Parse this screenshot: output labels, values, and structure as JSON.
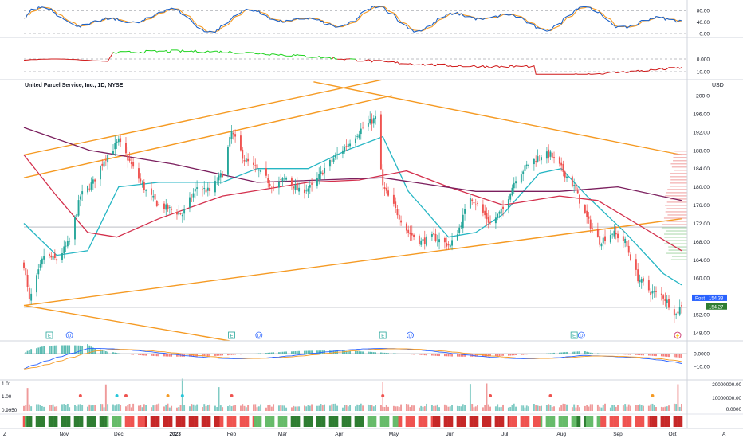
{
  "header": {
    "symbol_title": "United Parcel Service, Inc., 1D, NYSE",
    "currency": "USD"
  },
  "corner": {
    "left": "Z",
    "right": "A"
  },
  "colors": {
    "up": "#26a69a",
    "down": "#ef5350",
    "ma_fast": "#26b6c4",
    "ma_mid": "#d32f4c",
    "ma_slow": "#7b1f5e",
    "trendline": "#f59a23",
    "stoch_k": "#1e63c8",
    "stoch_d": "#f59a23",
    "osc_up": "#1ed31e",
    "osc_down": "#d01818",
    "post": "#2962ff",
    "last": "#2e7d32"
  },
  "stoch_panel": {
    "ticks": [
      "80.00",
      "40.00",
      "0.00"
    ]
  },
  "osc_panel": {
    "ticks": [
      "0.000",
      "−10.00"
    ]
  },
  "macd_panel": {
    "ticks": [
      "0.0000",
      "−10.00"
    ]
  },
  "vol_panel": {
    "left_ticks": [
      "1.01",
      "1.00",
      "0.9950"
    ],
    "right_ticks": [
      "20000000.00",
      "10000000.00",
      "0.0000"
    ]
  },
  "price_axis": {
    "ticks": [
      "200.0",
      "196.00",
      "192.00",
      "188.00",
      "184.00",
      "180.00",
      "176.00",
      "172.00",
      "168.00",
      "164.00",
      "160.00",
      "156.00",
      "152.00",
      "148.00"
    ],
    "post_label": "Post",
    "post_value": "154.33",
    "last_value": "154.27"
  },
  "events": [
    "E",
    "D",
    "E",
    "D",
    "E",
    "D",
    "E",
    "D"
  ],
  "time_axis": {
    "labels": [
      "Nov",
      "Dec",
      "2023",
      "Feb",
      "Mar",
      "Apr",
      "May",
      "Jun",
      "Jul",
      "Aug",
      "Sep",
      "Oct"
    ]
  },
  "chart_data": {
    "type": "candlestick",
    "title": "United Parcel Service, Inc., 1D, NYSE",
    "ylim": [
      148,
      200
    ],
    "x_range": [
      "2022-10-10",
      "2023-10-06"
    ],
    "anchors": [
      [
        "2022-10-10",
        163.0
      ],
      [
        "2022-10-13",
        155.0
      ],
      [
        "2022-10-21",
        165.0
      ],
      [
        "2022-10-28",
        164.0
      ],
      [
        "2022-11-04",
        168.0
      ],
      [
        "2022-11-10",
        178.0
      ],
      [
        "2022-11-17",
        181.0
      ],
      [
        "2022-11-23",
        186.0
      ],
      [
        "2022-12-01",
        190.0
      ],
      [
        "2022-12-09",
        184.0
      ],
      [
        "2022-12-16",
        179.0
      ],
      [
        "2022-12-23",
        176.0
      ],
      [
        "2023-01-05",
        174.0
      ],
      [
        "2023-01-13",
        180.0
      ],
      [
        "2023-01-20",
        179.0
      ],
      [
        "2023-01-27",
        183.0
      ],
      [
        "2023-02-01",
        192.0
      ],
      [
        "2023-02-08",
        186.0
      ],
      [
        "2023-02-17",
        183.0
      ],
      [
        "2023-02-24",
        180.0
      ],
      [
        "2023-03-03",
        182.0
      ],
      [
        "2023-03-10",
        179.0
      ],
      [
        "2023-03-17",
        180.0
      ],
      [
        "2023-03-24",
        184.0
      ],
      [
        "2023-03-31",
        187.0
      ],
      [
        "2023-04-07",
        190.0
      ],
      [
        "2023-04-14",
        193.0
      ],
      [
        "2023-04-21",
        195.0
      ],
      [
        "2023-04-25",
        180.0
      ],
      [
        "2023-05-02",
        175.0
      ],
      [
        "2023-05-09",
        170.0
      ],
      [
        "2023-05-16",
        168.0
      ],
      [
        "2023-05-23",
        169.0
      ],
      [
        "2023-06-01",
        167.0
      ],
      [
        "2023-06-06",
        171.0
      ],
      [
        "2023-06-12",
        178.0
      ],
      [
        "2023-06-16",
        176.0
      ],
      [
        "2023-06-23",
        172.0
      ],
      [
        "2023-06-30",
        175.0
      ],
      [
        "2023-07-07",
        182.0
      ],
      [
        "2023-07-14",
        185.0
      ],
      [
        "2023-07-21",
        187.0
      ],
      [
        "2023-07-26",
        187.0
      ],
      [
        "2023-08-01",
        184.0
      ],
      [
        "2023-08-08",
        180.0
      ],
      [
        "2023-08-15",
        173.0
      ],
      [
        "2023-08-22",
        168.0
      ],
      [
        "2023-08-29",
        170.0
      ],
      [
        "2023-09-05",
        168.0
      ],
      [
        "2023-09-12",
        160.0
      ],
      [
        "2023-09-19",
        157.0
      ],
      [
        "2023-09-26",
        156.0
      ],
      [
        "2023-10-03",
        152.0
      ],
      [
        "2023-10-06",
        154.27
      ]
    ],
    "moving_averages": [
      {
        "color": "#26b6c4",
        "points": [
          [
            "2022-10-10",
            172.0
          ],
          [
            "2022-10-28",
            165.0
          ],
          [
            "2022-11-14",
            166.0
          ],
          [
            "2022-12-01",
            180.0
          ],
          [
            "2022-12-23",
            181.0
          ],
          [
            "2023-01-27",
            181.0
          ],
          [
            "2023-02-15",
            184.0
          ],
          [
            "2023-03-15",
            184.0
          ],
          [
            "2023-04-05",
            188.0
          ],
          [
            "2023-04-25",
            191.0
          ],
          [
            "2023-05-09",
            179.0
          ],
          [
            "2023-05-31",
            169.0
          ],
          [
            "2023-06-15",
            170.0
          ],
          [
            "2023-06-30",
            174.0
          ],
          [
            "2023-07-20",
            183.0
          ],
          [
            "2023-08-01",
            184.0
          ],
          [
            "2023-08-15",
            178.0
          ],
          [
            "2023-09-05",
            170.0
          ],
          [
            "2023-09-26",
            161.0
          ],
          [
            "2023-10-06",
            158.5
          ]
        ]
      },
      {
        "color": "#d32f4c",
        "points": [
          [
            "2022-10-10",
            187.0
          ],
          [
            "2022-10-28",
            178.0
          ],
          [
            "2022-11-14",
            170.0
          ],
          [
            "2022-11-30",
            169.0
          ],
          [
            "2022-12-23",
            173.0
          ],
          [
            "2023-01-27",
            178.0
          ],
          [
            "2023-03-15",
            181.0
          ],
          [
            "2023-04-12",
            181.5
          ],
          [
            "2023-05-08",
            183.5
          ],
          [
            "2023-05-31",
            180.0
          ],
          [
            "2023-06-30",
            176.0
          ],
          [
            "2023-07-31",
            178.0
          ],
          [
            "2023-08-21",
            177.0
          ],
          [
            "2023-09-11",
            172.0
          ],
          [
            "2023-10-06",
            166.0
          ]
        ]
      },
      {
        "color": "#7b1f5e",
        "points": [
          [
            "2022-10-10",
            193.0
          ],
          [
            "2022-11-15",
            188.0
          ],
          [
            "2022-12-31",
            185.0
          ],
          [
            "2023-02-15",
            181.0
          ],
          [
            "2023-04-25",
            182.0
          ],
          [
            "2023-06-15",
            179.0
          ],
          [
            "2023-07-31",
            179.0
          ],
          [
            "2023-09-01",
            180.0
          ],
          [
            "2023-10-06",
            177.0
          ]
        ]
      }
    ],
    "trendlines": [
      {
        "from": [
          "2022-10-10",
          154.0
        ],
        "to": [
          "2023-10-06",
          173.0
        ]
      },
      {
        "from": [
          "2022-10-10",
          187.0
        ],
        "to": [
          "2023-05-01",
          204.0
        ]
      },
      {
        "from": [
          "2022-10-10",
          182.0
        ],
        "to": [
          "2023-04-30",
          200.0
        ]
      },
      {
        "from": [
          "2023-03-18",
          203.0
        ],
        "to": [
          "2023-10-06",
          187.0
        ]
      }
    ],
    "horizontal_levels": [
      171.2,
      153.6
    ]
  }
}
